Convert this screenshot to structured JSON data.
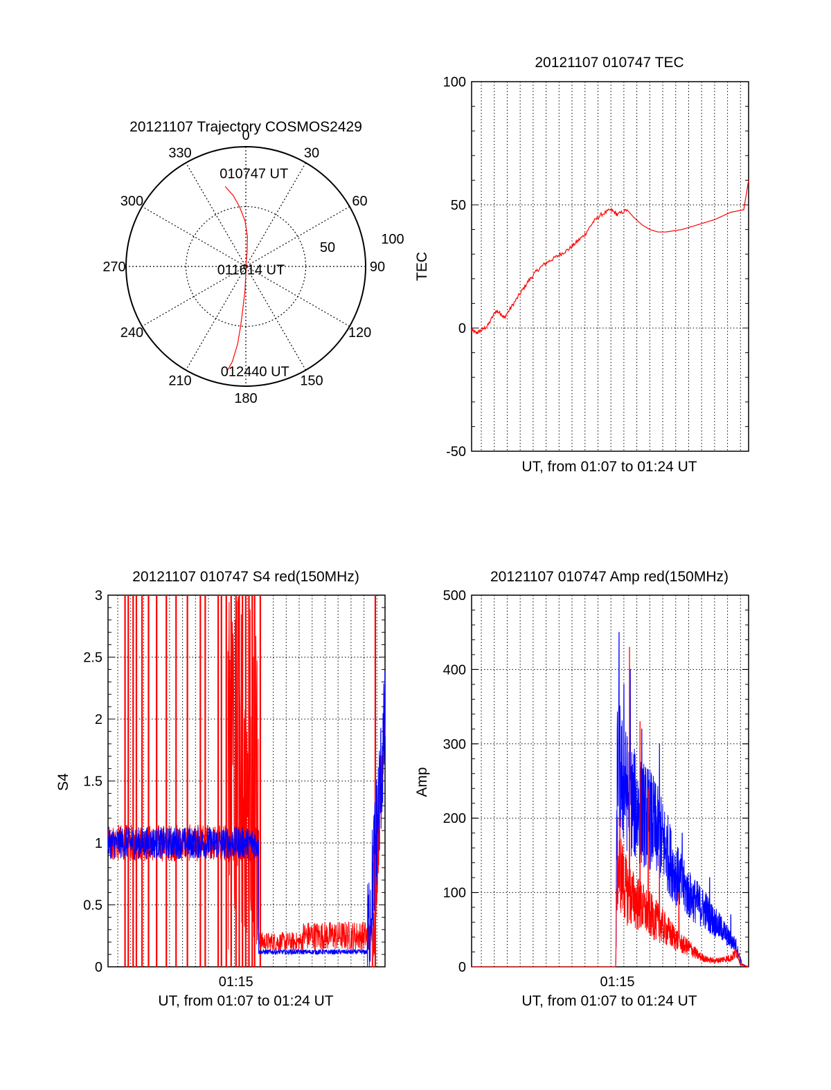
{
  "colors": {
    "red": "#ff0000",
    "blue": "#0000ff",
    "axis": "#000000",
    "grid": "#000000"
  },
  "chart_data": [
    {
      "type": "polar",
      "title": "20121107 Trajectory COSMOS2429",
      "angle_labels": [
        "0",
        "30",
        "60",
        "90",
        "120",
        "150",
        "180",
        "210",
        "240",
        "270",
        "300",
        "330"
      ],
      "radial_labels": [
        "50",
        "100"
      ],
      "grid": true,
      "series": [
        {
          "color": "red",
          "points": [
            [
              345.5,
              69
            ],
            [
              350,
              60
            ],
            [
              354,
              50
            ],
            [
              359,
              38
            ],
            [
              3,
              25
            ],
            [
              5,
              12
            ],
            [
              4,
              3
            ],
            [
              180,
              6
            ],
            [
              182,
              20
            ],
            [
              184,
              35
            ],
            [
              185,
              50
            ],
            [
              186,
              65
            ],
            [
              188,
              80
            ],
            [
              190,
              88
            ]
          ]
        }
      ],
      "annotations": [
        {
          "text": "010747 UT",
          "az": 5,
          "r": 78
        },
        {
          "text": "011614 UT",
          "az": 120,
          "r": 5
        },
        {
          "text": "012440 UT",
          "az": 175,
          "r": 88
        }
      ]
    },
    {
      "type": "line",
      "title": "20121107 010747 TEC",
      "xlabel": "UT, from 01:07 to 01:24 UT",
      "ylabel": "TEC",
      "xlim": [
        0,
        17.1
      ],
      "ylim": [
        -50,
        100
      ],
      "yticks": [
        -50,
        0,
        50,
        100
      ],
      "grid": true,
      "series": [
        {
          "color": "red",
          "x": [
            0,
            0.3,
            0.6,
            1.0,
            1.5,
            1.8,
            2.0,
            2.5,
            3.0,
            3.5,
            4.0,
            4.5,
            5.0,
            5.5,
            6.0,
            6.5,
            7.0,
            7.5,
            8.0,
            8.6,
            9.0,
            9.6,
            10.0,
            10.5,
            11.0,
            11.5,
            12.0,
            13.0,
            14.0,
            15.0,
            16.0,
            16.8,
            17.1
          ],
          "y": [
            -1,
            -2,
            -1,
            1,
            7,
            6,
            4,
            9,
            14,
            19,
            23,
            26,
            28,
            30,
            32,
            35,
            38,
            43,
            46,
            48,
            46,
            48,
            45,
            42,
            40,
            39,
            39,
            40,
            42,
            44,
            47,
            48,
            60
          ]
        }
      ]
    },
    {
      "type": "line",
      "title": "20121107 010747 S4 red(150MHz)",
      "xlabel": "UT, from 01:07 to 01:24 UT",
      "ylabel": "S4",
      "xlim": [
        0,
        17.1
      ],
      "ylim": [
        0,
        3
      ],
      "yticks": [
        "0",
        "0.5",
        "1",
        "1.5",
        "2",
        "2.5",
        "3"
      ],
      "xticks": [
        "01:15"
      ],
      "grid": true,
      "series": [
        {
          "name": "red",
          "color": "red",
          "segments": [
            {
              "x0": 0.0,
              "x1": 9.3,
              "base": 1.0,
              "noise": 0.15
            },
            {
              "x0": 9.3,
              "x1": 12.0,
              "base": 0.2,
              "noise": 0.08
            },
            {
              "x0": 12.0,
              "x1": 16.3,
              "base": 0.25,
              "noise": 0.12
            },
            {
              "x0": 16.3,
              "x1": 17.1,
              "base": 1.4,
              "noise": 0.4
            }
          ],
          "spikes_x": [
            1.05,
            1.25,
            1.55,
            1.75,
            2.1,
            2.5,
            3.0,
            3.6,
            4.2,
            4.9,
            5.7,
            6.0,
            6.8,
            7.0,
            7.3,
            7.6,
            7.9,
            8.1,
            8.3,
            8.5,
            8.7,
            8.9,
            9.05,
            9.4,
            16.5
          ],
          "burst": {
            "x0": 7.4,
            "x1": 9.3
          }
        },
        {
          "name": "blue",
          "color": "blue",
          "segments": [
            {
              "x0": 0.0,
              "x1": 9.3,
              "base": 1.0,
              "noise": 0.13
            },
            {
              "x0": 9.3,
              "x1": 16.0,
              "base": 0.12,
              "noise": 0.02
            },
            {
              "x0": 16.0,
              "x1": 17.1,
              "base": 1.2,
              "noise": 0.5
            }
          ]
        }
      ]
    },
    {
      "type": "line",
      "title": "20121107 010747 Amp red(150MHz)",
      "xlabel": "UT, from 01:07 to 01:24 UT",
      "ylabel": "Amp",
      "xlim": [
        0,
        17.1
      ],
      "ylim": [
        0,
        500
      ],
      "yticks": [
        "0",
        "100",
        "200",
        "300",
        "400",
        "500"
      ],
      "xticks": [
        "01:15"
      ],
      "grid": true,
      "series": [
        {
          "name": "red",
          "color": "red",
          "env_x": [
            0,
            8.5,
            8.9,
            9.0,
            9.3,
            9.6,
            10.0,
            10.5,
            11.0,
            11.5,
            12.0,
            12.5,
            13.0,
            13.5,
            14.0,
            14.5,
            15.0,
            15.5,
            16.0,
            16.4,
            16.6,
            17.1
          ],
          "env_y": [
            0,
            0,
            0,
            140,
            120,
            100,
            90,
            80,
            70,
            60,
            50,
            40,
            30,
            25,
            15,
            10,
            8,
            10,
            12,
            20,
            3,
            0
          ],
          "noise": 0.45,
          "peaks": [
            [
              9.15,
              200
            ],
            [
              9.75,
              430
            ],
            [
              10.4,
              330
            ],
            [
              10.9,
              240
            ],
            [
              11.6,
              150
            ],
            [
              12.8,
              100
            ]
          ]
        },
        {
          "name": "blue",
          "color": "blue",
          "env_x": [
            0,
            8.5,
            8.9,
            9.0,
            9.3,
            9.7,
            10.3,
            11.0,
            11.5,
            12.0,
            12.5,
            13.0,
            13.5,
            14.0,
            14.5,
            15.0,
            15.5,
            16.0,
            16.3,
            16.7,
            17.1
          ],
          "env_y": [
            0,
            0,
            0,
            280,
            250,
            230,
            210,
            200,
            180,
            160,
            130,
            110,
            95,
            85,
            75,
            60,
            50,
            35,
            30,
            3,
            0
          ],
          "noise": 0.35,
          "peaks": [
            [
              9.1,
              450
            ],
            [
              9.4,
              380
            ],
            [
              9.8,
              400
            ],
            [
              10.5,
              320
            ],
            [
              11.6,
              300
            ],
            [
              13.0,
              180
            ],
            [
              14.7,
              120
            ],
            [
              16.0,
              70
            ]
          ]
        }
      ]
    }
  ]
}
